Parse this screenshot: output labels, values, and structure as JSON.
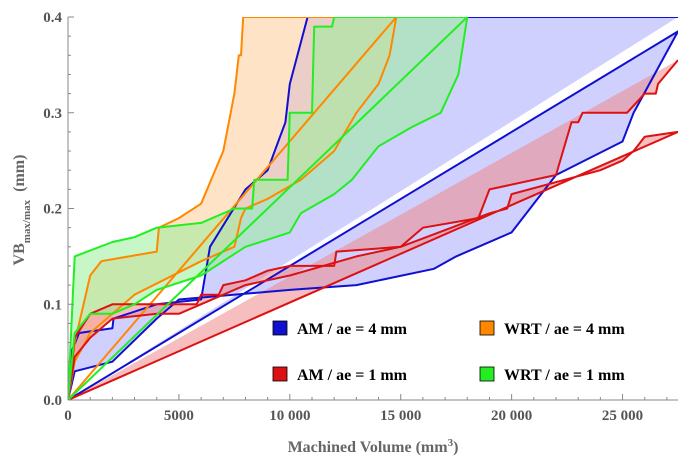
{
  "chart_data": {
    "type": "area",
    "xlabel": "Machined Volume (mm³)",
    "ylabel": "VB_max/max (mm)",
    "xlim": [
      0,
      27500
    ],
    "ylim": [
      0,
      0.4
    ],
    "x_ticks": [
      0,
      5000,
      10000,
      15000,
      20000,
      25000
    ],
    "x_tick_labels": [
      "0",
      "5000",
      "10 000",
      "15 000",
      "20 000",
      "25 000"
    ],
    "y_ticks": [
      0.0,
      0.1,
      0.2,
      0.3,
      0.4
    ],
    "y_tick_labels": [
      "0.0",
      "0.1",
      "0.2",
      "0.3",
      "0.4"
    ],
    "grid": false,
    "legend_position": "bottom-right",
    "series": [
      {
        "name": "AM / ae = 4 mm",
        "color": "#1010d0",
        "fill": "#aaaaff",
        "upper": [
          [
            0,
            0
          ],
          [
            150,
            0.05
          ],
          [
            500,
            0.07
          ],
          [
            2000,
            0.075
          ],
          [
            2050,
            0.085
          ],
          [
            4000,
            0.1
          ],
          [
            6000,
            0.105
          ],
          [
            6400,
            0.16
          ],
          [
            8000,
            0.22
          ],
          [
            9000,
            0.24
          ],
          [
            9800,
            0.29
          ],
          [
            10000,
            0.33
          ],
          [
            10800,
            0.4
          ],
          [
            27500,
            0.4
          ]
        ],
        "lower": [
          [
            0,
            0
          ],
          [
            27500,
            0.385
          ],
          [
            25500,
            0.3
          ],
          [
            25000,
            0.27
          ],
          [
            22000,
            0.235
          ],
          [
            20000,
            0.175
          ],
          [
            18500,
            0.16
          ],
          [
            17500,
            0.15
          ],
          [
            16500,
            0.137
          ],
          [
            13000,
            0.12
          ],
          [
            10000,
            0.115
          ],
          [
            5000,
            0.105
          ],
          [
            4000,
            0.085
          ],
          [
            2000,
            0.04
          ],
          [
            300,
            0.03
          ],
          [
            0,
            0
          ]
        ]
      },
      {
        "name": "WRT / ae = 4 mm",
        "color": "#ff8800",
        "fill": "#ffcc99",
        "upper": [
          [
            0,
            0
          ],
          [
            300,
            0.06
          ],
          [
            1000,
            0.13
          ],
          [
            1500,
            0.145
          ],
          [
            4000,
            0.155
          ],
          [
            4100,
            0.18
          ],
          [
            5000,
            0.19
          ],
          [
            6000,
            0.205
          ],
          [
            7000,
            0.26
          ],
          [
            7500,
            0.32
          ],
          [
            7700,
            0.36
          ],
          [
            7800,
            0.36
          ],
          [
            7900,
            0.4
          ],
          [
            14800,
            0.4
          ]
        ],
        "lower": [
          [
            0,
            0
          ],
          [
            14800,
            0.4
          ],
          [
            14500,
            0.36
          ],
          [
            14000,
            0.33
          ],
          [
            13000,
            0.3
          ],
          [
            12000,
            0.26
          ],
          [
            10500,
            0.23
          ],
          [
            9000,
            0.21
          ],
          [
            8000,
            0.2
          ],
          [
            7800,
            0.19
          ],
          [
            7500,
            0.16
          ],
          [
            6000,
            0.145
          ],
          [
            3000,
            0.11
          ],
          [
            1000,
            0.07
          ],
          [
            300,
            0.04
          ],
          [
            0,
            0
          ]
        ]
      },
      {
        "name": "AM / ae = 1 mm",
        "color": "#dd1111",
        "fill": "#ee8888",
        "upper": [
          [
            0,
            0
          ],
          [
            300,
            0.065
          ],
          [
            1000,
            0.09
          ],
          [
            2000,
            0.1
          ],
          [
            5800,
            0.1
          ],
          [
            6000,
            0.11
          ],
          [
            6800,
            0.11
          ],
          [
            7000,
            0.12
          ],
          [
            8000,
            0.125
          ],
          [
            9000,
            0.135
          ],
          [
            10000,
            0.14
          ],
          [
            12000,
            0.14
          ],
          [
            12100,
            0.155
          ],
          [
            15000,
            0.16
          ],
          [
            16000,
            0.18
          ],
          [
            18500,
            0.19
          ],
          [
            19000,
            0.22
          ],
          [
            22000,
            0.235
          ],
          [
            22700,
            0.29
          ],
          [
            23000,
            0.29
          ],
          [
            23200,
            0.3
          ],
          [
            25200,
            0.3
          ],
          [
            26000,
            0.32
          ],
          [
            26500,
            0.32
          ],
          [
            26600,
            0.33
          ],
          [
            27500,
            0.355
          ]
        ],
        "lower": [
          [
            0,
            0
          ],
          [
            27500,
            0.28
          ],
          [
            26000,
            0.275
          ],
          [
            25500,
            0.26
          ],
          [
            25000,
            0.25
          ],
          [
            24000,
            0.24
          ],
          [
            20000,
            0.215
          ],
          [
            19800,
            0.2
          ],
          [
            19000,
            0.195
          ],
          [
            15000,
            0.16
          ],
          [
            13000,
            0.15
          ],
          [
            10000,
            0.13
          ],
          [
            8000,
            0.12
          ],
          [
            5000,
            0.09
          ],
          [
            4000,
            0.09
          ],
          [
            2000,
            0.085
          ],
          [
            1000,
            0.065
          ],
          [
            300,
            0.045
          ],
          [
            0,
            0
          ]
        ]
      },
      {
        "name": "WRT / ae = 1 mm",
        "color": "#22ee22",
        "fill": "#99ee99",
        "upper": [
          [
            0,
            0
          ],
          [
            200,
            0.1
          ],
          [
            300,
            0.15
          ],
          [
            2000,
            0.165
          ],
          [
            3000,
            0.17
          ],
          [
            4000,
            0.18
          ],
          [
            6000,
            0.185
          ],
          [
            7500,
            0.2
          ],
          [
            8300,
            0.2
          ],
          [
            8400,
            0.23
          ],
          [
            9900,
            0.23
          ],
          [
            10000,
            0.3
          ],
          [
            10500,
            0.3
          ],
          [
            11000,
            0.3
          ],
          [
            11100,
            0.39
          ],
          [
            11900,
            0.39
          ],
          [
            12000,
            0.4
          ],
          [
            18000,
            0.4
          ]
        ],
        "lower": [
          [
            0,
            0
          ],
          [
            18000,
            0.4
          ],
          [
            17600,
            0.34
          ],
          [
            16800,
            0.3
          ],
          [
            15500,
            0.285
          ],
          [
            14000,
            0.265
          ],
          [
            12800,
            0.23
          ],
          [
            12000,
            0.215
          ],
          [
            10500,
            0.195
          ],
          [
            10000,
            0.175
          ],
          [
            8000,
            0.16
          ],
          [
            6000,
            0.13
          ],
          [
            4000,
            0.115
          ],
          [
            3000,
            0.1
          ],
          [
            2000,
            0.09
          ],
          [
            1000,
            0.09
          ],
          [
            300,
            0.07
          ],
          [
            0,
            0
          ]
        ]
      }
    ],
    "legend": [
      {
        "label": "AM / ae = 4 mm",
        "color": "#1010d0"
      },
      {
        "label": "WRT / ae = 4 mm",
        "color": "#ff8800"
      },
      {
        "label": "AM / ae = 1 mm",
        "color": "#dd1111"
      },
      {
        "label": "WRT / ae = 1 mm",
        "color": "#22ee22"
      }
    ]
  }
}
